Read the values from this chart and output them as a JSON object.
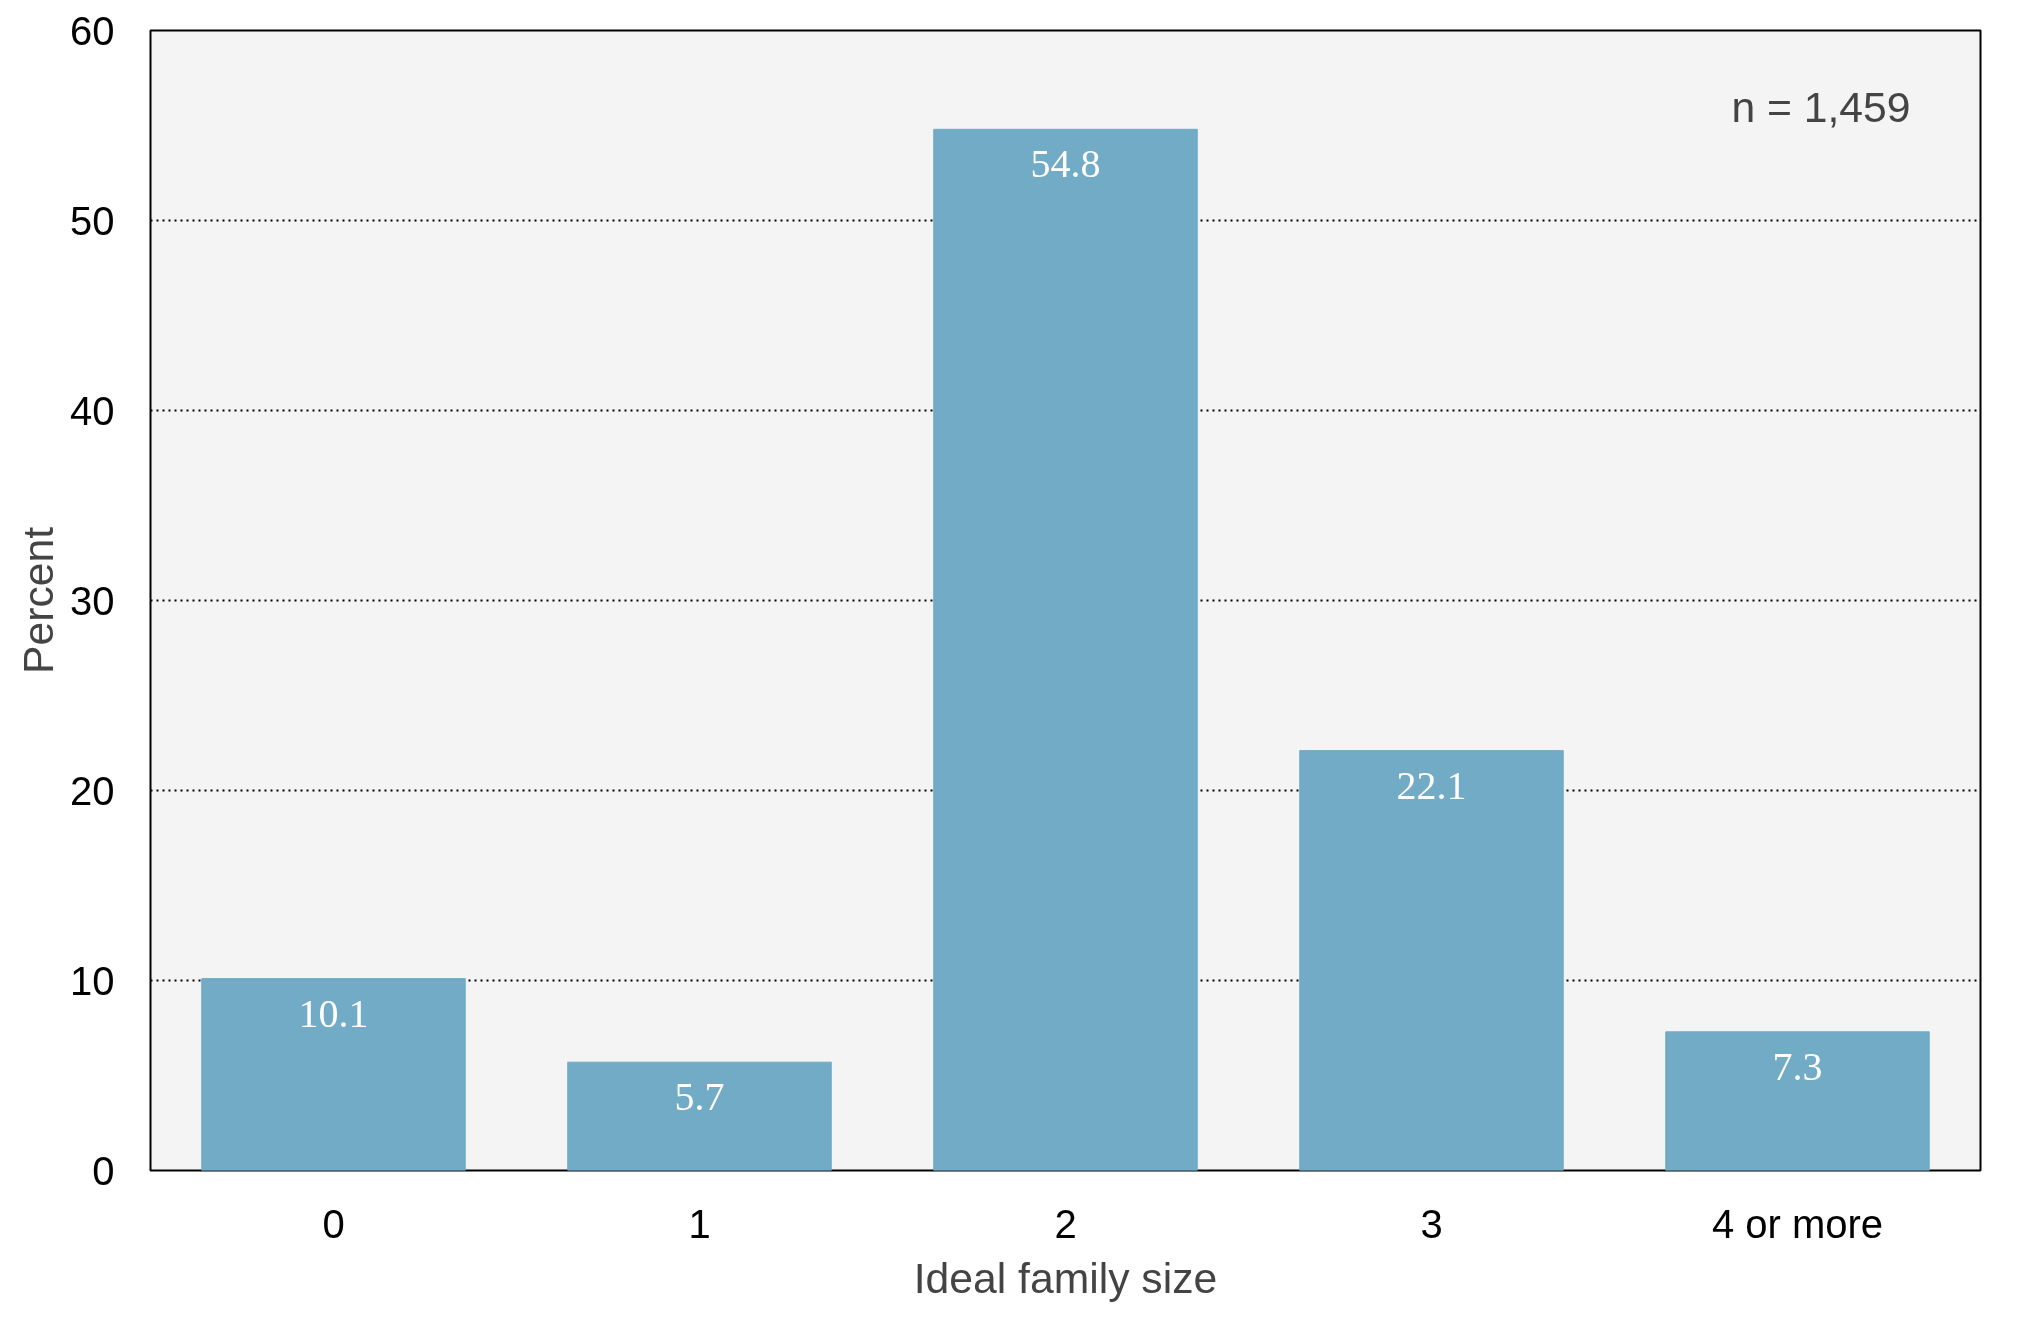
{
  "chart_data": {
    "type": "bar",
    "xlabel": "Ideal family size",
    "ylabel": "Percent",
    "categories": [
      "0",
      "1",
      "2",
      "3",
      "4 or more"
    ],
    "values": [
      10.1,
      5.7,
      54.8,
      22.1,
      7.3
    ],
    "color": "#72abc6",
    "ylim": [
      0,
      60
    ],
    "yticks": [
      0,
      10,
      20,
      30,
      40,
      50,
      60
    ],
    "grid": "y",
    "data_labels": true,
    "annotations": [
      "n = 1,459"
    ]
  }
}
